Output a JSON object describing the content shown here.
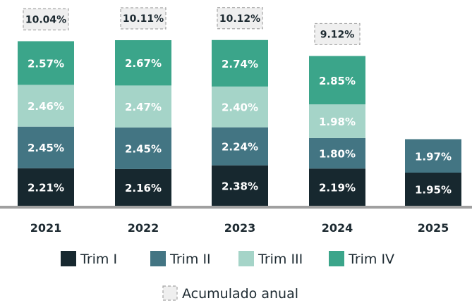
{
  "chart_data": {
    "type": "bar",
    "stacked": true,
    "categories": [
      "2021",
      "2022",
      "2023",
      "2024",
      "2025"
    ],
    "series": [
      {
        "name": "Trim I",
        "color": "#17282f",
        "values": [
          2.21,
          2.16,
          2.38,
          2.19,
          1.95
        ],
        "labels": [
          "2.21%",
          "2.16%",
          "2.38%",
          "2.19%",
          "1.95%"
        ]
      },
      {
        "name": "Trim II",
        "color": "#437583",
        "values": [
          2.45,
          2.45,
          2.24,
          1.8,
          1.97
        ],
        "labels": [
          "2.45%",
          "2.45%",
          "2.24%",
          "1.80%",
          "1.97%"
        ]
      },
      {
        "name": "Trim III",
        "color": "#a5d4c8",
        "values": [
          2.46,
          2.47,
          2.4,
          1.98,
          null
        ],
        "labels": [
          "2.46%",
          "2.47%",
          "2.40%",
          "1.98%",
          ""
        ]
      },
      {
        "name": "Trim IV",
        "color": "#3ba58a",
        "values": [
          2.57,
          2.67,
          2.74,
          2.85,
          null
        ],
        "labels": [
          "2.57%",
          "2.67%",
          "2.74%",
          "2.85%",
          ""
        ]
      }
    ],
    "totals": {
      "name": "Acumulado anual",
      "values": [
        10.04,
        10.11,
        10.12,
        9.12,
        null
      ],
      "labels": [
        "10.04%",
        "10.11%",
        "10.12%",
        "9.12%",
        ""
      ]
    },
    "title": "",
    "xlabel": "",
    "ylabel": "",
    "ylim": [
      0,
      10.5
    ],
    "grid": false,
    "legend_position": "bottom"
  }
}
